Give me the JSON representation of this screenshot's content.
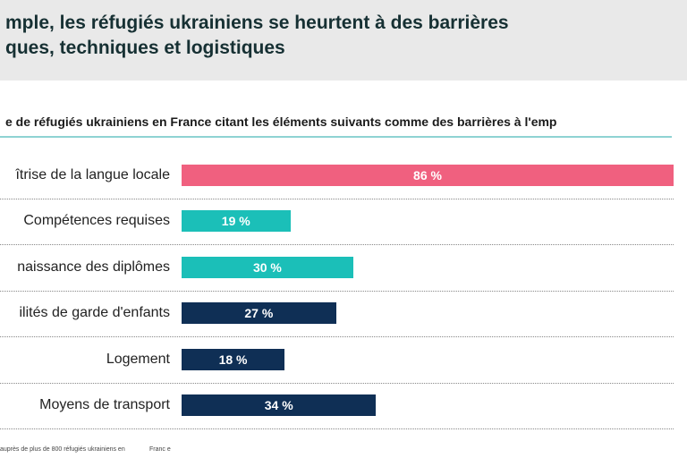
{
  "header": {
    "title_line1": "mple, les réfugiés ukrainiens se heurtent à des barrières",
    "title_line2": "ques, techniques et logistiques"
  },
  "chart_data": {
    "type": "bar",
    "orientation": "horizontal",
    "subtitle": "e de réfugiés ukrainiens en France citant les éléments suivants comme des barrières à l'emp",
    "categories": [
      "îtrise de la langue locale",
      "Compétences requises",
      "naissance des diplômes",
      "ilités de garde d'enfants",
      "Logement",
      "Moyens de transport"
    ],
    "values": [
      86,
      19,
      30,
      27,
      18,
      34
    ],
    "value_labels": [
      "86 %",
      "19 %",
      "30 %",
      "27 %",
      "18 %",
      "34 %"
    ],
    "colors": [
      "#f0607f",
      "#1bbfb8",
      "#1bbfb8",
      "#0f2f55",
      "#0f2f55",
      "#0f2f55"
    ],
    "xlim": [
      0,
      100
    ],
    "unit": "%"
  },
  "source": {
    "text": "auprès de plus de 800 réfugiés ukrainiens en",
    "text2": "Franc e"
  }
}
